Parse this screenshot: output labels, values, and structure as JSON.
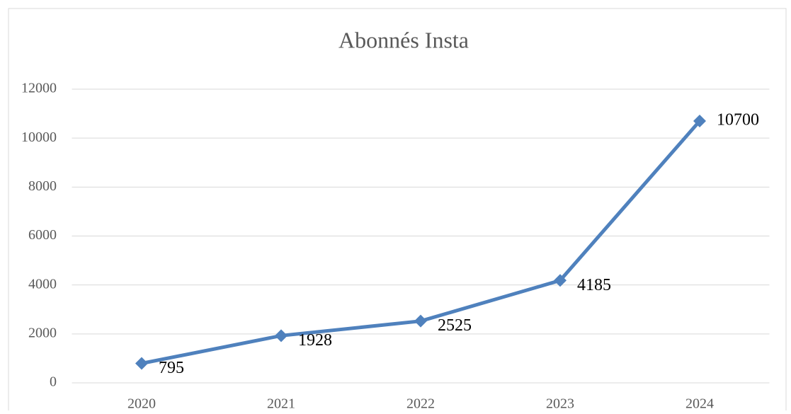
{
  "chart_data": {
    "type": "line",
    "title": "Abonnés Insta",
    "categories": [
      "2020",
      "2021",
      "2022",
      "2023",
      "2024"
    ],
    "series": [
      {
        "name": "Abonnés",
        "color": "#4f81bd",
        "values": [
          795,
          1928,
          2525,
          4185,
          10700
        ]
      }
    ],
    "ylim": [
      0,
      12000
    ],
    "yticks": [
      0,
      2000,
      4000,
      6000,
      8000,
      10000,
      12000
    ],
    "grid": true
  }
}
